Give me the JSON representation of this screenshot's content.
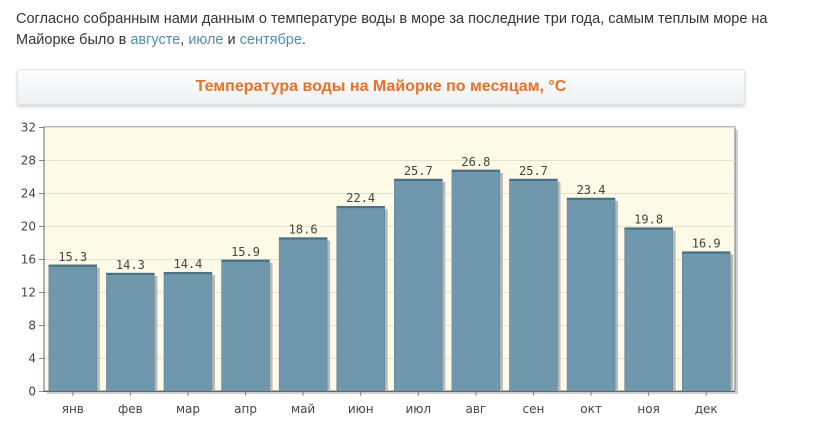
{
  "intro": {
    "text_before": "Согласно собранным нами данным о температуре воды в море за последние три года, самым теплым море на Майорке было в ",
    "link1": "августе",
    "sep1": ", ",
    "link2": "июле",
    "sep2": " и ",
    "link3": "сентябре",
    "text_after": "."
  },
  "colors": {
    "bar": "#7098ad",
    "title": "#e5722a",
    "link": "#4e8fb4",
    "plot_bg": "#fdfbe8"
  },
  "chart_data": {
    "type": "bar",
    "title": "Температура воды на Майорке по месяцам, °C",
    "xlabel": "",
    "ylabel": "",
    "grid": true,
    "ylim": [
      0,
      32
    ],
    "yticks": [
      0,
      4,
      8,
      12,
      16,
      20,
      24,
      28,
      32
    ],
    "categories": [
      "янв",
      "фев",
      "мар",
      "апр",
      "май",
      "июн",
      "июл",
      "авг",
      "сен",
      "окт",
      "ноя",
      "дек"
    ],
    "values": [
      15.3,
      14.3,
      14.4,
      15.9,
      18.6,
      22.4,
      25.7,
      26.8,
      25.7,
      23.4,
      19.8,
      16.9
    ]
  }
}
